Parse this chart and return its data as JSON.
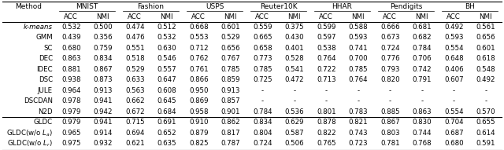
{
  "group_headers": [
    "Method",
    "MNIST",
    "Fashion",
    "USPS",
    "Reuter10K",
    "HHAR",
    "Pendigits",
    "BH"
  ],
  "sub_headers": [
    "ACC",
    "NMI"
  ],
  "methods": [
    "k-means",
    "GMM",
    "SC",
    "DEC",
    "IDEC",
    "DSC",
    "JULE",
    "DSCDAN",
    "N2D",
    "GLDC",
    "GLDC(w/o $L_a$)",
    "GLDC(w/o $L_r$)"
  ],
  "methods_italic": [
    true,
    false,
    false,
    false,
    false,
    false,
    false,
    false,
    false,
    false,
    false,
    false
  ],
  "data": [
    [
      0.532,
      0.5,
      0.474,
      0.512,
      0.668,
      0.601,
      0.559,
      0.375,
      0.599,
      0.588,
      0.666,
      0.681,
      0.492,
      0.561
    ],
    [
      0.439,
      0.356,
      0.476,
      0.532,
      0.553,
      0.529,
      0.665,
      0.43,
      0.597,
      0.593,
      0.673,
      0.682,
      0.593,
      0.656
    ],
    [
      0.68,
      0.759,
      0.551,
      0.63,
      0.712,
      0.656,
      0.658,
      0.401,
      0.538,
      0.741,
      0.724,
      0.784,
      0.554,
      0.601
    ],
    [
      0.863,
      0.834,
      0.518,
      0.546,
      0.762,
      0.767,
      0.773,
      0.528,
      0.764,
      0.7,
      0.776,
      0.706,
      0.648,
      0.618
    ],
    [
      0.881,
      0.867,
      0.529,
      0.557,
      0.761,
      0.785,
      0.785,
      0.541,
      0.722,
      0.785,
      0.793,
      0.742,
      0.406,
      0.548
    ],
    [
      0.938,
      0.873,
      0.633,
      0.647,
      0.866,
      0.859,
      0.725,
      0.472,
      0.713,
      0.764,
      0.82,
      0.791,
      0.607,
      0.492
    ],
    [
      0.964,
      0.913,
      0.563,
      0.608,
      0.95,
      0.913,
      null,
      null,
      null,
      null,
      null,
      null,
      null,
      null
    ],
    [
      0.978,
      0.941,
      0.662,
      0.645,
      0.869,
      0.857,
      null,
      null,
      null,
      null,
      null,
      null,
      null,
      null
    ],
    [
      0.979,
      0.942,
      0.672,
      0.684,
      0.958,
      0.901,
      0.784,
      0.536,
      0.801,
      0.783,
      0.885,
      0.863,
      0.554,
      0.57
    ],
    [
      0.979,
      0.941,
      0.715,
      0.691,
      0.91,
      0.862,
      0.834,
      0.629,
      0.878,
      0.821,
      0.867,
      0.83,
      0.704,
      0.655
    ],
    [
      0.965,
      0.914,
      0.694,
      0.652,
      0.879,
      0.817,
      0.804,
      0.587,
      0.822,
      0.743,
      0.803,
      0.744,
      0.687,
      0.614
    ],
    [
      0.975,
      0.932,
      0.621,
      0.635,
      0.825,
      0.787,
      0.724,
      0.506,
      0.765,
      0.723,
      0.781,
      0.768,
      0.68,
      0.591
    ]
  ],
  "background_color": "#ffffff",
  "text_color": "#000000",
  "font_size": 6.2,
  "header_font_size": 6.5
}
